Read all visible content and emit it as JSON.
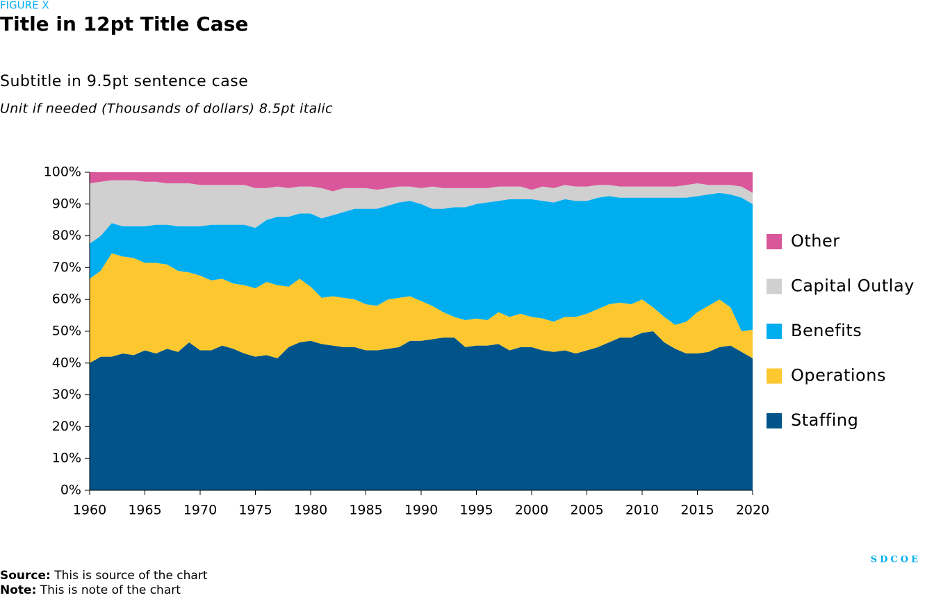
{
  "figure_label": "FIGURE X",
  "source": {
    "label": "Source:",
    "text": "This is source of the chart"
  },
  "note": {
    "label": "Note:",
    "text": "This is note of the chart"
  },
  "logo": "SDCOE",
  "chart_data": {
    "type": "stacked_area",
    "title": "Title in 12pt Title Case",
    "subtitle": "Subtitle in 9.5pt sentence case",
    "unit": "Unit if needed (Thousands of dollars) 8.5pt italic",
    "x": [
      1960,
      1961,
      1962,
      1963,
      1964,
      1965,
      1966,
      1967,
      1968,
      1969,
      1970,
      1971,
      1972,
      1973,
      1974,
      1975,
      1976,
      1977,
      1978,
      1979,
      1980,
      1981,
      1982,
      1983,
      1984,
      1985,
      1986,
      1987,
      1988,
      1989,
      1990,
      1991,
      1992,
      1993,
      1994,
      1995,
      1996,
      1997,
      1998,
      1999,
      2000,
      2001,
      2002,
      2003,
      2004,
      2005,
      2006,
      2007,
      2008,
      2009,
      2010,
      2011,
      2012,
      2013,
      2014,
      2015,
      2016,
      2017,
      2018,
      2019,
      2020
    ],
    "series": [
      {
        "name": "Staffing",
        "color": "#00548a",
        "values": [
          40,
          42,
          42,
          43,
          42.5,
          44,
          43,
          44.5,
          43.5,
          46.5,
          44,
          44,
          45.5,
          44.5,
          43,
          42,
          42.5,
          41.5,
          45,
          46.5,
          47,
          46,
          45.5,
          45,
          45,
          44,
          44,
          44.5,
          45,
          47,
          47,
          47.5,
          48,
          48,
          45,
          45.5,
          45.5,
          46,
          44,
          45,
          45,
          44,
          43.5,
          44,
          43,
          44,
          45,
          46.5,
          48,
          48,
          49.5,
          50,
          46.5,
          44.5,
          43,
          43,
          43.5,
          45,
          45.5,
          43.5,
          41.5
        ]
      },
      {
        "name": "Operations",
        "color": "#fdc82f",
        "values": [
          26.5,
          27,
          32.5,
          30.5,
          30.5,
          27.5,
          28.5,
          26.5,
          25.5,
          22,
          23.5,
          22,
          21,
          20.5,
          21.5,
          21.5,
          23,
          23,
          19,
          20,
          17,
          14.5,
          15.5,
          15.5,
          15,
          14.5,
          14,
          15.5,
          15.5,
          14,
          12.5,
          10.5,
          8,
          6.5,
          8.5,
          8.5,
          8,
          10,
          10.5,
          10.5,
          9.5,
          10,
          9.5,
          10.5,
          11.5,
          11.5,
          12,
          12,
          11,
          10.5,
          10.5,
          7.5,
          8,
          7.5,
          10,
          13,
          14.5,
          15,
          12,
          6.5,
          9
        ]
      },
      {
        "name": "Benefits",
        "color": "#00aeef",
        "values": [
          11,
          11,
          9.5,
          9.5,
          10,
          11.5,
          12,
          12.5,
          14,
          14.5,
          15.5,
          17.5,
          17,
          18.5,
          19,
          19,
          19.5,
          21.5,
          22,
          20.5,
          23,
          25,
          25.5,
          27,
          28.5,
          30,
          30.5,
          29.5,
          30,
          30,
          30.5,
          30.5,
          32.5,
          34.5,
          35.5,
          36,
          37,
          35,
          37,
          36,
          37,
          37,
          37.5,
          37,
          36.5,
          35.5,
          35,
          34,
          33,
          33.5,
          32,
          34.5,
          37.5,
          40,
          39,
          36.5,
          35,
          33.5,
          35.5,
          42,
          39.5
        ]
      },
      {
        "name": "Capital Outlay",
        "color": "#d0d0d0",
        "values": [
          19,
          17,
          13.5,
          14.5,
          14.5,
          14,
          13.5,
          13,
          13.5,
          13.5,
          13,
          12.5,
          12.5,
          12.5,
          12.5,
          12.5,
          10,
          9.5,
          9,
          8.5,
          8.5,
          9.5,
          7.5,
          7.5,
          6.5,
          6.5,
          6,
          5.5,
          5,
          4.5,
          5,
          7,
          6.5,
          6,
          6,
          5,
          4.5,
          4.5,
          4,
          4,
          3,
          4.5,
          4.5,
          4.5,
          4.5,
          4.5,
          4,
          3.5,
          3.5,
          3.5,
          3.5,
          3.5,
          3.5,
          3.5,
          4,
          4,
          3,
          2.5,
          3,
          3.5,
          3.5
        ]
      },
      {
        "name": "Other",
        "color": "#d9579a",
        "values": [
          3.5,
          3,
          2.5,
          2.5,
          2.5,
          3,
          3,
          3.5,
          3.5,
          3.5,
          4,
          4,
          4,
          4,
          4,
          5,
          5,
          4.5,
          5,
          4.5,
          4.5,
          5,
          6,
          5,
          5,
          5,
          5.5,
          5,
          4.5,
          4.5,
          5,
          4.5,
          5,
          5,
          5,
          5,
          5,
          4.5,
          4.5,
          4.5,
          5.5,
          4.5,
          5,
          4,
          4.5,
          4.5,
          4,
          4,
          4.5,
          4.5,
          4.5,
          4.5,
          4.5,
          4.5,
          4,
          3.5,
          4,
          4,
          4,
          4.5,
          6.5
        ]
      }
    ],
    "xlim": [
      1960,
      2020
    ],
    "xticks": [
      1960,
      1965,
      1970,
      1975,
      1980,
      1985,
      1990,
      1995,
      2000,
      2005,
      2010,
      2015,
      2020
    ],
    "ylim": [
      0,
      100
    ],
    "yticks": [
      {
        "value": 0,
        "label": "0%"
      },
      {
        "value": 10,
        "label": "10%"
      },
      {
        "value": 20,
        "label": "20%"
      },
      {
        "value": 30,
        "label": "30%"
      },
      {
        "value": 40,
        "label": "40%"
      },
      {
        "value": 50,
        "label": "50%"
      },
      {
        "value": 60,
        "label": "60%"
      },
      {
        "value": 70,
        "label": "70%"
      },
      {
        "value": 80,
        "label": "80%"
      },
      {
        "value": 90,
        "label": "90%"
      },
      {
        "value": 100,
        "label": "100%"
      }
    ],
    "legend": "right"
  }
}
